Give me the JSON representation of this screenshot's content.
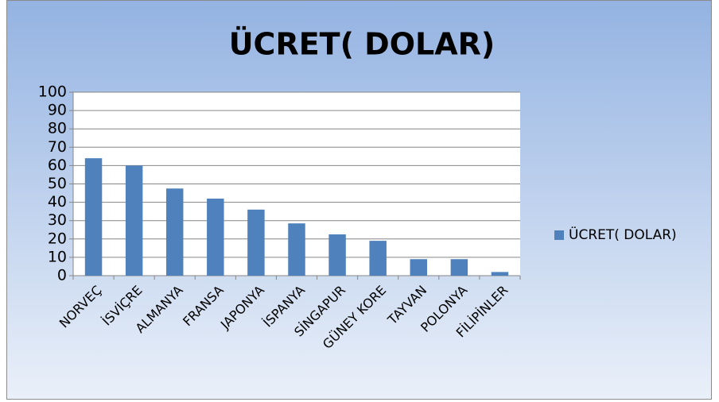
{
  "chart_data": {
    "type": "bar",
    "title": "ÜCRET( DOLAR)",
    "categories": [
      "NORVEÇ",
      "İSVİÇRE",
      "ALMANYA",
      "FRANSA",
      "JAPONYA",
      "İSPANYA",
      "SİNGAPUR",
      "GÜNEY KORE",
      "TAYVAN",
      "POLONYA",
      "FİLİPİNLER"
    ],
    "series": [
      {
        "name": "ÜCRET( DOLAR)",
        "color": "#4f81bd",
        "values": [
          64,
          60,
          47.5,
          42,
          36,
          28.5,
          22.5,
          19,
          9,
          9,
          2
        ]
      }
    ],
    "ylim": [
      0,
      100
    ],
    "yticks": [
      0,
      10,
      20,
      30,
      40,
      50,
      60,
      70,
      80,
      90,
      100
    ],
    "grid": true,
    "legend": "right"
  }
}
